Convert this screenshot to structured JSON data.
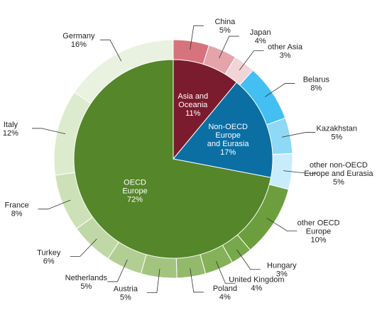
{
  "chart_data": {
    "type": "pie",
    "title": "",
    "start_angle_deg": 0,
    "inner": [
      {
        "name": "Asia and Oceania",
        "line1": "Asia and",
        "line2": "Oceania",
        "label": "11%",
        "value": 11,
        "color": "#7b1c2e"
      },
      {
        "name": "Non-OECD Europe and Eurasia",
        "line1": "Non-OECD",
        "line2": "Europe",
        "line3": "and Eurasia",
        "label": "17%",
        "value": 17,
        "color": "#0b6fa4"
      },
      {
        "name": "OECD Europe",
        "line1": "OECD",
        "line2": "Europe",
        "label": "72%",
        "value": 72,
        "color": "#55862a"
      }
    ],
    "outer": [
      {
        "name": "China",
        "label": "5%",
        "value": 5,
        "color": "#d6737d"
      },
      {
        "name": "Japan",
        "label": "4%",
        "value": 4,
        "color": "#e4a4aa"
      },
      {
        "name": "other Asia",
        "label": "3%",
        "value": 3,
        "color": "#f2d3d6"
      },
      {
        "name": "Belarus",
        "label": "8%",
        "value": 8,
        "color": "#43bff2"
      },
      {
        "name": "Kazakhstan",
        "label": "5%",
        "value": 5,
        "color": "#8fd8f6"
      },
      {
        "name": "other non-OECD Europe and Eurasia",
        "line1": "other non-OECD",
        "line2": "Europe and Eurasia",
        "label": "5%",
        "value": 5,
        "color": "#c8ecfb"
      },
      {
        "name": "other OECD Europe",
        "line1": "other OECD",
        "line2": "Europe",
        "label": "10%",
        "value": 10,
        "color": "#6c9e3e"
      },
      {
        "name": "Hungary",
        "label": "3%",
        "value": 3,
        "color": "#77a84a"
      },
      {
        "name": "United Kingdom",
        "label": "4%",
        "value": 4,
        "color": "#85b159"
      },
      {
        "name": "Poland",
        "label": "4%",
        "value": 4,
        "color": "#93ba6a"
      },
      {
        "name": "Austria",
        "label": "5%",
        "value": 5,
        "color": "#a3c47e"
      },
      {
        "name": "Netherlands",
        "label": "5%",
        "value": 5,
        "color": "#b2ce92"
      },
      {
        "name": "Turkey",
        "label": "6%",
        "value": 6,
        "color": "#c0d8a6"
      },
      {
        "name": "France",
        "label": "8%",
        "value": 8,
        "color": "#cde1b8"
      },
      {
        "name": "Italy",
        "label": "12%",
        "value": 12,
        "color": "#dcebcd"
      },
      {
        "name": "Germany",
        "label": "16%",
        "value": 16,
        "color": "#e9f2e0"
      }
    ]
  }
}
